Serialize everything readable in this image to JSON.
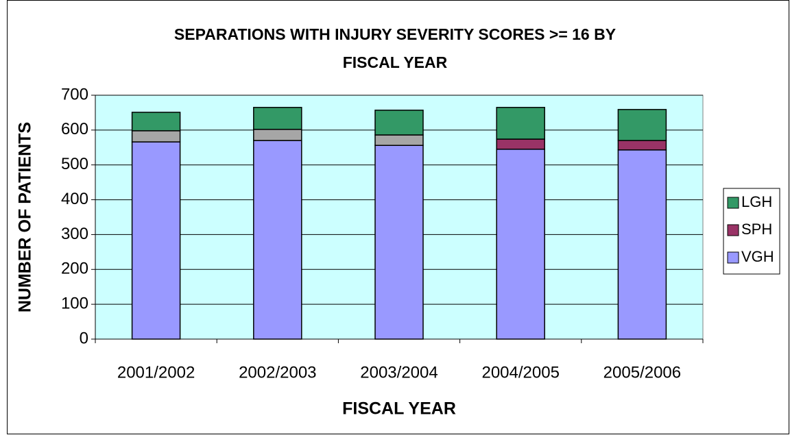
{
  "chart_data": {
    "type": "stacked_bar",
    "title": "SEPARATIONS WITH INJURY SEVERITY SCORES >= 16 BY FISCAL YEAR",
    "x_label": "FISCAL YEAR",
    "y_label": "NUMBER OF PATIENTS",
    "categories": [
      "2001/2002",
      "2002/2003",
      "2003/2004",
      "2004/2005",
      "2005/2006"
    ],
    "series": [
      {
        "name": "VGH",
        "color": "#9999ff",
        "values": [
          566,
          570,
          556,
          545,
          543
        ]
      },
      {
        "name": "SPH",
        "color": "#993366",
        "point_colors": [
          "#a6a6a6",
          "#a6a6a6",
          "#a6a6a6",
          null,
          null
        ],
        "values": [
          32,
          32,
          30,
          29,
          27
        ]
      },
      {
        "name": "LGH",
        "color": "#339966",
        "values": [
          53,
          63,
          71,
          91,
          89
        ]
      }
    ],
    "ylim": [
      0,
      700
    ],
    "yticks": [
      0,
      100,
      200,
      300,
      400,
      500,
      600,
      700
    ],
    "grid": true,
    "legend": "right",
    "plot_background": "#ccffff"
  }
}
